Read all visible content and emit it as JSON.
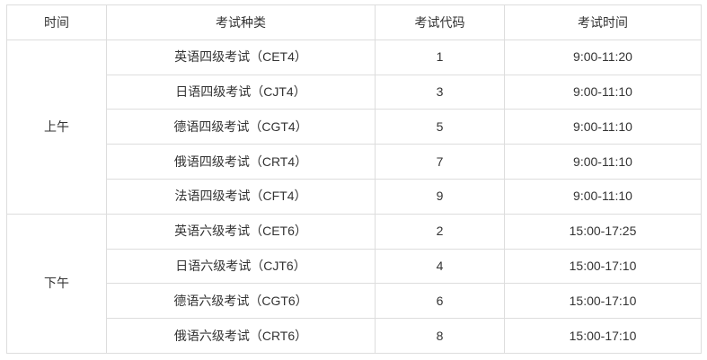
{
  "table": {
    "headers": {
      "time": "时间",
      "exam_type": "考试种类",
      "exam_code": "考试代码",
      "exam_time": "考试时间"
    },
    "colors": {
      "border": "#dddddd",
      "text": "#333333",
      "background": "#ffffff"
    },
    "groups": [
      {
        "label": "上午",
        "rows": [
          {
            "type": "英语四级考试（CET4）",
            "code": "1",
            "time": "9:00-11:20"
          },
          {
            "type": "日语四级考试（CJT4）",
            "code": "3",
            "time": "9:00-11:10"
          },
          {
            "type": "德语四级考试（CGT4）",
            "code": "5",
            "time": "9:00-11:10"
          },
          {
            "type": "俄语四级考试（CRT4）",
            "code": "7",
            "time": "9:00-11:10"
          },
          {
            "type": "法语四级考试（CFT4）",
            "code": "9",
            "time": "9:00-11:10"
          }
        ]
      },
      {
        "label": "下午",
        "rows": [
          {
            "type": "英语六级考试（CET6）",
            "code": "2",
            "time": "15:00-17:25"
          },
          {
            "type": "日语六级考试（CJT6）",
            "code": "4",
            "time": "15:00-17:10"
          },
          {
            "type": "德语六级考试（CGT6）",
            "code": "6",
            "time": "15:00-17:10"
          },
          {
            "type": "俄语六级考试（CRT6）",
            "code": "8",
            "time": "15:00-17:10"
          }
        ]
      }
    ]
  }
}
